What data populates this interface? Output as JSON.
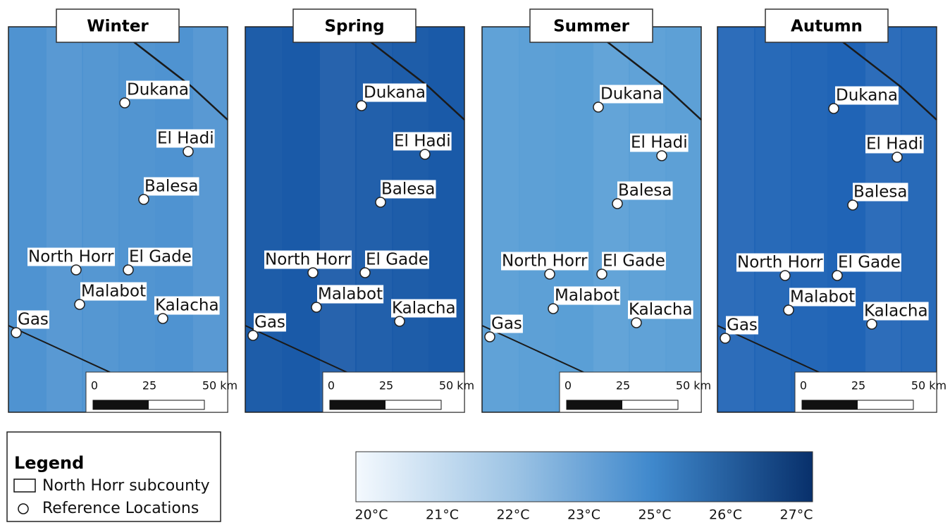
{
  "panels": [
    {
      "title": "Winter"
    },
    {
      "title": "Spring"
    },
    {
      "title": "Summer"
    },
    {
      "title": "Autumn"
    }
  ],
  "locations": [
    "Dukana",
    "El Hadi",
    "Balesa",
    "North Horr",
    "El Gade",
    "Malabot",
    "Kalacha",
    "Gas"
  ],
  "scale_bar": {
    "labels": [
      "0",
      "25",
      "50 km"
    ]
  },
  "legend": {
    "title": "Legend",
    "items": [
      "North Horr subcounty",
      "Reference Locations"
    ]
  },
  "colorbar": {
    "labels": [
      "20°C",
      "21°C",
      "22°C",
      "23°C",
      "25°C",
      "26°C",
      "27°C"
    ]
  }
}
